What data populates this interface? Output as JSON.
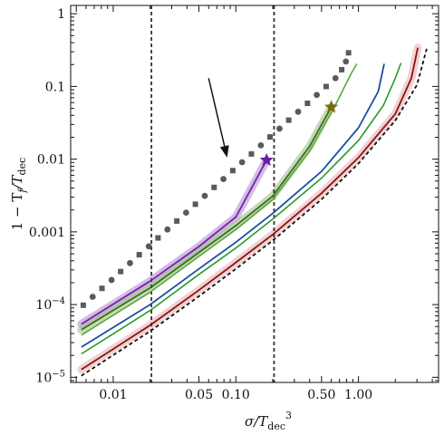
{
  "chart_data": {
    "type": "line",
    "title": "",
    "xlabel": {
      "main": "σ/T",
      "sub": "dec",
      "sup": "3"
    },
    "ylabel": {
      "main": "1 − T",
      "sub1": "f",
      "mid": "/T",
      "sub2": "dec"
    },
    "x_scale": "log",
    "y_scale": "log",
    "xlim": [
      0.0045,
      4.5
    ],
    "ylim": [
      8.5e-06,
      1.3
    ],
    "grid": false,
    "legend": "none",
    "x_ticks": [
      {
        "value": 0.01,
        "label": "0.01"
      },
      {
        "value": 0.05,
        "label": "0.05"
      },
      {
        "value": 0.1,
        "label": "0.10"
      },
      {
        "value": 0.5,
        "label": "0.50"
      },
      {
        "value": 1.0,
        "label": "1.00"
      }
    ],
    "y_ticks": [
      {
        "value": 1e-05,
        "label_base": "10",
        "label_exp": "−5"
      },
      {
        "value": 0.0001,
        "label_base": "10",
        "label_exp": "−4"
      },
      {
        "value": 0.001,
        "label": "0.001"
      },
      {
        "value": 0.01,
        "label": "0.01"
      },
      {
        "value": 0.1,
        "label": "0.1"
      },
      {
        "value": 1,
        "label": "1"
      }
    ],
    "vertical_lines": [
      0.0205,
      0.205
    ],
    "series": [
      {
        "color": "#7a1fa8",
        "width": 1.8,
        "band": "#b58fd6",
        "points": [
          [
            0.0055,
            5.4e-05
          ],
          [
            0.02,
            0.00021
          ],
          [
            0.05,
            0.00063
          ],
          [
            0.1,
            0.0016
          ],
          [
            0.178,
            0.0097
          ]
        ]
      },
      {
        "color": "#3a6b1a",
        "width": 1.8,
        "band": "#9fc28a",
        "points": [
          [
            0.0055,
            4.5e-05
          ],
          [
            0.02,
            0.00017
          ],
          [
            0.05,
            0.00052
          ],
          [
            0.1,
            0.00122
          ],
          [
            0.2,
            0.0031
          ],
          [
            0.4,
            0.015
          ],
          [
            0.6,
            0.052
          ]
        ]
      },
      {
        "color": "#5ba83a",
        "width": 1.6,
        "points": [
          [
            0.0055,
            3.8e-05
          ],
          [
            0.02,
            0.000148
          ],
          [
            0.05,
            0.00046
          ],
          [
            0.1,
            0.00108
          ],
          [
            0.2,
            0.0028
          ],
          [
            0.4,
            0.013
          ],
          [
            0.65,
            0.056
          ],
          [
            0.88,
            0.155
          ],
          [
            0.97,
            0.205
          ]
        ]
      },
      {
        "color": "#1d4fa0",
        "width": 1.8,
        "points": [
          [
            0.0055,
            2.6e-05
          ],
          [
            0.02,
            0.0001
          ],
          [
            0.05,
            0.00031
          ],
          [
            0.1,
            0.00072
          ],
          [
            0.2,
            0.0018
          ],
          [
            0.5,
            0.0068
          ],
          [
            1.0,
            0.027
          ],
          [
            1.45,
            0.085
          ],
          [
            1.62,
            0.205
          ]
        ]
      },
      {
        "color": "#2a9a2a",
        "width": 1.6,
        "points": [
          [
            0.0055,
            2.1e-05
          ],
          [
            0.02,
            8.3e-05
          ],
          [
            0.05,
            0.00026
          ],
          [
            0.1,
            0.0006
          ],
          [
            0.2,
            0.0015
          ],
          [
            0.5,
            0.0055
          ],
          [
            1.0,
            0.018
          ],
          [
            1.6,
            0.055
          ],
          [
            2.0,
            0.13
          ],
          [
            2.22,
            0.21
          ]
        ]
      },
      {
        "color": "#8a1414",
        "width": 1.8,
        "band": "#e8b4b4",
        "points": [
          [
            0.0055,
            1.28e-05
          ],
          [
            0.02,
            5.2e-05
          ],
          [
            0.05,
            0.000158
          ],
          [
            0.1,
            0.00038
          ],
          [
            0.2,
            0.00092
          ],
          [
            0.5,
            0.0034
          ],
          [
            1.0,
            0.0105
          ],
          [
            2.0,
            0.042
          ],
          [
            2.7,
            0.13
          ],
          [
            3.05,
            0.34
          ]
        ]
      },
      {
        "color": "#111111",
        "width": 1.8,
        "dash": "4,3",
        "points": [
          [
            0.0055,
            1.05e-05
          ],
          [
            0.02,
            4.3e-05
          ],
          [
            0.05,
            0.00013
          ],
          [
            0.1,
            0.00031
          ],
          [
            0.2,
            0.00076
          ],
          [
            0.5,
            0.0028
          ],
          [
            1.0,
            0.0087
          ],
          [
            2.0,
            0.034
          ],
          [
            3.0,
            0.105
          ],
          [
            3.6,
            0.33
          ]
        ]
      }
    ],
    "dotted_series": {
      "color": "#555c60",
      "points": [
        [
          0.0057,
          9.8e-05
        ],
        [
          0.0068,
          0.000128
        ],
        [
          0.0081,
          0.000167
        ],
        [
          0.0097,
          0.000218
        ],
        [
          0.0115,
          0.000285
        ],
        [
          0.0137,
          0.000372
        ],
        [
          0.0163,
          0.000485
        ],
        [
          0.0195,
          0.000633
        ],
        [
          0.0232,
          0.000826
        ],
        [
          0.0277,
          0.00108
        ],
        [
          0.033,
          0.00141
        ],
        [
          0.0393,
          0.00184
        ],
        [
          0.0468,
          0.0024
        ],
        [
          0.0558,
          0.00313
        ],
        [
          0.0665,
          0.00409
        ],
        [
          0.0792,
          0.00533
        ],
        [
          0.0944,
          0.00696
        ],
        [
          0.1125,
          0.00908
        ],
        [
          0.134,
          0.0118
        ],
        [
          0.16,
          0.0155
        ],
        [
          0.19,
          0.0202
        ],
        [
          0.227,
          0.0263
        ],
        [
          0.27,
          0.0344
        ],
        [
          0.322,
          0.0449
        ],
        [
          0.384,
          0.0586
        ],
        [
          0.457,
          0.0764
        ],
        [
          0.545,
          0.0997
        ],
        [
          0.65,
          0.13
        ],
        [
          0.73,
          0.17
        ],
        [
          0.79,
          0.22
        ],
        [
          0.83,
          0.29
        ]
      ]
    },
    "stars": [
      {
        "x": 0.178,
        "y": 0.0097,
        "color": "#6a1fa0"
      },
      {
        "x": 0.6,
        "y": 0.052,
        "color": "#7a6a10"
      }
    ],
    "arrow": {
      "from": [
        0.06,
        0.13
      ],
      "to": [
        0.085,
        0.0105
      ],
      "color": "#111111"
    }
  }
}
